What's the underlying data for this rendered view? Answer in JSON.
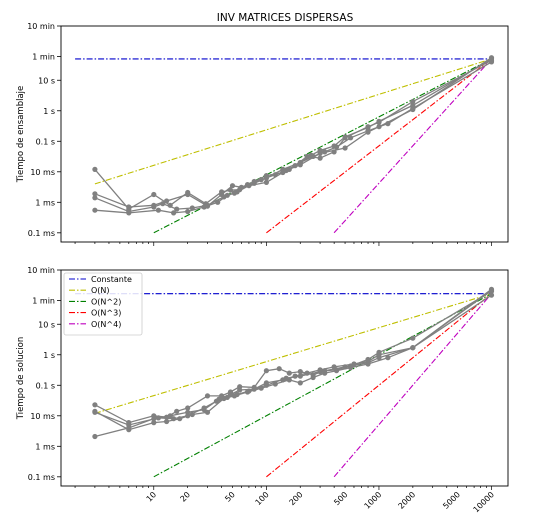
{
  "chart_data": [
    {
      "type": "line",
      "title": "INV MATRICES DISPERSAS",
      "ylabel": "Tiempo de ensamblaje",
      "xlabel": "",
      "xscale": "log",
      "yscale": "log",
      "xlim": [
        1.5,
        14000
      ],
      "ylim": [
        5e-05,
        600
      ],
      "yticks": [
        0.0001,
        0.001,
        0.01,
        0.1,
        1,
        10,
        60,
        600
      ],
      "ytick_labels": [
        "0.1 ms",
        "1 ms",
        "10 ms",
        "0.1 s",
        "1 s",
        "10 s",
        "1 min",
        "10 min"
      ],
      "reference_lines": [
        {
          "name": "Constante",
          "color": "#0000cc",
          "points": [
            [
              2,
              50
            ],
            [
              10000,
              50
            ]
          ]
        },
        {
          "name": "O(N)",
          "color": "#bfbf00",
          "points": [
            [
              3,
              0.004
            ],
            [
              10000,
              50
            ]
          ]
        },
        {
          "name": "O(N^2)",
          "color": "#008000",
          "points": [
            [
              10,
              0.0001
            ],
            [
              10000,
              50
            ]
          ]
        },
        {
          "name": "O(N^3)",
          "color": "#ff0000",
          "points": [
            [
              100,
              0.0001
            ],
            [
              10000,
              50
            ]
          ]
        },
        {
          "name": "O(N^4)",
          "color": "#bf00bf",
          "points": [
            [
              400,
              0.0001
            ],
            [
              10000,
              50
            ]
          ]
        }
      ],
      "series": [
        {
          "color": "#808080",
          "x": [
            3,
            6,
            10,
            14,
            20,
            29,
            40,
            48,
            58,
            78,
            100,
            140,
            200,
            250,
            300,
            400,
            500,
            800,
            1000,
            2000,
            10000
          ],
          "y": [
            0.012,
            0.0006,
            0.0018,
            0.0008,
            0.0021,
            0.0009,
            0.0022,
            0.0025,
            0.0026,
            0.0042,
            0.0062,
            0.012,
            0.02,
            0.035,
            0.05,
            0.07,
            0.14,
            0.28,
            0.45,
            1.5,
            50
          ]
        },
        {
          "color": "#808080",
          "x": [
            3,
            6,
            10,
            13,
            20,
            30,
            40,
            50,
            60,
            78,
            100,
            140,
            180,
            230,
            300,
            400,
            500,
            800,
            1000,
            2000,
            10000
          ],
          "y": [
            0.0019,
            0.0007,
            0.0008,
            0.0011,
            0.0018,
            0.00075,
            0.0018,
            0.0035,
            0.0031,
            0.0048,
            0.0075,
            0.0095,
            0.016,
            0.032,
            0.028,
            0.045,
            0.13,
            0.3,
            0.42,
            2.0,
            45
          ]
        },
        {
          "color": "#808080",
          "x": [
            3,
            6,
            10,
            12,
            16,
            22,
            30,
            42,
            52,
            68,
            90,
            120,
            160,
            200,
            260,
            330,
            420,
            560,
            800,
            1200,
            2000,
            10000
          ],
          "y": [
            0.0014,
            0.0005,
            0.0007,
            0.0009,
            0.0006,
            0.00065,
            0.0008,
            0.0015,
            0.002,
            0.0038,
            0.0055,
            0.008,
            0.012,
            0.02,
            0.032,
            0.045,
            0.065,
            0.13,
            0.22,
            0.38,
            1.2,
            40
          ]
        },
        {
          "color": "#808080",
          "x": [
            3,
            6,
            11,
            15,
            20,
            28,
            37,
            45,
            55,
            70,
            100,
            150,
            200,
            300,
            500,
            800,
            1000,
            2000,
            10000
          ],
          "y": [
            0.00055,
            0.00045,
            0.00055,
            0.00045,
            0.0005,
            0.0007,
            0.001,
            0.0017,
            0.0022,
            0.0035,
            0.0045,
            0.011,
            0.017,
            0.04,
            0.06,
            0.2,
            0.3,
            1.1,
            55
          ]
        }
      ]
    },
    {
      "type": "line",
      "title": "",
      "ylabel": "Tiempo de solucion",
      "xlabel": "",
      "xscale": "log",
      "yscale": "log",
      "xlim": [
        1.5,
        14000
      ],
      "ylim": [
        5e-05,
        600
      ],
      "yticks": [
        0.0001,
        0.001,
        0.01,
        0.1,
        1,
        10,
        60,
        600
      ],
      "ytick_labels": [
        "0.1 ms",
        "1 ms",
        "10 ms",
        "0.1 s",
        "1 s",
        "10 s",
        "1 min",
        "10 min"
      ],
      "xticks": [
        10,
        20,
        50,
        100,
        200,
        500,
        1000,
        2000,
        5000,
        10000
      ],
      "xtick_labels": [
        "10",
        "20",
        "50",
        "100",
        "200",
        "500",
        "1000",
        "2000",
        "5000",
        "10000"
      ],
      "legend": {
        "position": "top-left",
        "entries": [
          {
            "label": "Constante",
            "color": "#0000cc"
          },
          {
            "label": "O(N)",
            "color": "#bfbf00"
          },
          {
            "label": "O(N^2)",
            "color": "#008000"
          },
          {
            "label": "O(N^3)",
            "color": "#ff0000"
          },
          {
            "label": "O(N^4)",
            "color": "#bf00bf"
          }
        ]
      },
      "reference_lines": [
        {
          "name": "Constante",
          "color": "#0000cc",
          "points": [
            [
              2,
              100
            ],
            [
              10000,
              100
            ]
          ]
        },
        {
          "name": "O(N)",
          "color": "#bfbf00",
          "points": [
            [
              3,
              0.012
            ],
            [
              10000,
              100
            ]
          ]
        },
        {
          "name": "O(N^2)",
          "color": "#008000",
          "points": [
            [
              10,
              0.0001
            ],
            [
              10000,
              100
            ]
          ]
        },
        {
          "name": "O(N^3)",
          "color": "#ff0000",
          "points": [
            [
              100,
              0.0001
            ],
            [
              10000,
              100
            ]
          ]
        },
        {
          "name": "O(N^4)",
          "color": "#bf00bf",
          "points": [
            [
              400,
              0.0001
            ],
            [
              10000,
              100
            ]
          ]
        }
      ],
      "series": [
        {
          "color": "#808080",
          "x": [
            3,
            6,
            10,
            13,
            16,
            20,
            30,
            40,
            48,
            58,
            78,
            100,
            130,
            160,
            200,
            260,
            330,
            420,
            560,
            800,
            1000,
            2000,
            10000
          ],
          "y": [
            0.023,
            0.006,
            0.01,
            0.009,
            0.014,
            0.018,
            0.045,
            0.045,
            0.06,
            0.09,
            0.085,
            0.3,
            0.35,
            0.25,
            0.28,
            0.22,
            0.3,
            0.32,
            0.43,
            0.7,
            1.2,
            3.5,
            120
          ]
        },
        {
          "color": "#808080",
          "x": [
            3,
            6,
            10,
            14,
            20,
            28,
            38,
            48,
            58,
            78,
            100,
            140,
            180,
            230,
            300,
            400,
            600,
            800,
            1000,
            2000,
            10000
          ],
          "y": [
            0.0021,
            0.004,
            0.008,
            0.01,
            0.013,
            0.016,
            0.035,
            0.05,
            0.07,
            0.075,
            0.12,
            0.15,
            0.2,
            0.25,
            0.32,
            0.4,
            0.5,
            0.6,
            1.0,
            1.7,
            130
          ]
        },
        {
          "color": "#808080",
          "x": [
            3,
            6,
            10,
            13,
            17,
            22,
            30,
            42,
            52,
            68,
            90,
            120,
            160,
            200,
            260,
            330,
            420,
            560,
            800,
            1200,
            2000,
            10000
          ],
          "y": [
            0.014,
            0.0035,
            0.006,
            0.0065,
            0.008,
            0.011,
            0.013,
            0.037,
            0.045,
            0.06,
            0.08,
            0.11,
            0.15,
            0.12,
            0.18,
            0.25,
            0.3,
            0.38,
            0.5,
            0.8,
            1.7,
            90
          ]
        },
        {
          "color": "#808080",
          "x": [
            3,
            6,
            11,
            15,
            20,
            28,
            36,
            45,
            55,
            70,
            100,
            150,
            200,
            300,
            500,
            800,
            1000,
            2000,
            10000
          ],
          "y": [
            0.013,
            0.005,
            0.0085,
            0.008,
            0.01,
            0.018,
            0.03,
            0.04,
            0.05,
            0.065,
            0.1,
            0.17,
            0.2,
            0.28,
            0.4,
            0.55,
            0.8,
            1.7,
            140
          ]
        }
      ]
    }
  ]
}
